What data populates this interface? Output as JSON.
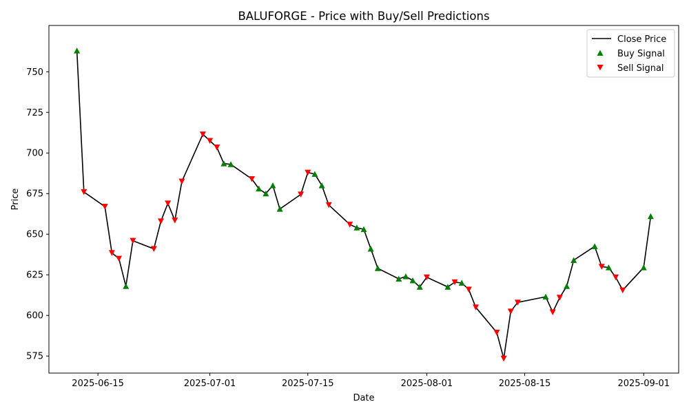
{
  "chart_data": {
    "type": "line",
    "title": "BALUFORGE - Price with Buy/Sell Predictions",
    "xlabel": "Date",
    "ylabel": "Price",
    "xlim": [
      "2025-06-08",
      "2025-09-06"
    ],
    "ylim": [
      564.5,
      778.5
    ],
    "x_ticks": [
      "2025-06-15",
      "2025-07-01",
      "2025-07-15",
      "2025-08-01",
      "2025-08-15",
      "2025-09-01"
    ],
    "y_ticks": [
      575,
      600,
      625,
      650,
      675,
      700,
      725,
      750
    ],
    "legend": {
      "placement": "top-right",
      "entries": [
        "Close Price",
        "Buy Signal",
        "Sell Signal"
      ]
    },
    "colors": {
      "line": "#000000",
      "buy": "#008000",
      "sell": "#ff0000"
    },
    "series": [
      {
        "name": "Close Price",
        "points": [
          {
            "x": "2025-06-12",
            "y": 763,
            "signal": "buy"
          },
          {
            "x": "2025-06-13",
            "y": 676,
            "signal": "sell"
          },
          {
            "x": "2025-06-16",
            "y": 667,
            "signal": "sell"
          },
          {
            "x": "2025-06-17",
            "y": 638.5,
            "signal": "sell"
          },
          {
            "x": "2025-06-18",
            "y": 635,
            "signal": "sell"
          },
          {
            "x": "2025-06-19",
            "y": 618,
            "signal": "buy"
          },
          {
            "x": "2025-06-20",
            "y": 646,
            "signal": "sell"
          },
          {
            "x": "2025-06-23",
            "y": 641,
            "signal": "sell"
          },
          {
            "x": "2025-06-24",
            "y": 658,
            "signal": "sell"
          },
          {
            "x": "2025-06-25",
            "y": 669,
            "signal": "sell"
          },
          {
            "x": "2025-06-26",
            "y": 658.5,
            "signal": "sell"
          },
          {
            "x": "2025-06-27",
            "y": 682.5,
            "signal": "sell"
          },
          {
            "x": "2025-06-30",
            "y": 711.5,
            "signal": "sell"
          },
          {
            "x": "2025-07-01",
            "y": 707.5,
            "signal": "sell"
          },
          {
            "x": "2025-07-02",
            "y": 703.5,
            "signal": "sell"
          },
          {
            "x": "2025-07-03",
            "y": 693.5,
            "signal": "buy"
          },
          {
            "x": "2025-07-04",
            "y": 693,
            "signal": "buy"
          },
          {
            "x": "2025-07-07",
            "y": 684,
            "signal": "sell"
          },
          {
            "x": "2025-07-08",
            "y": 678,
            "signal": "buy"
          },
          {
            "x": "2025-07-09",
            "y": 675,
            "signal": "buy"
          },
          {
            "x": "2025-07-10",
            "y": 680,
            "signal": "buy"
          },
          {
            "x": "2025-07-11",
            "y": 665.5,
            "signal": "buy"
          },
          {
            "x": "2025-07-14",
            "y": 674.5,
            "signal": "sell"
          },
          {
            "x": "2025-07-15",
            "y": 688,
            "signal": "sell"
          },
          {
            "x": "2025-07-16",
            "y": 687,
            "signal": "buy"
          },
          {
            "x": "2025-07-17",
            "y": 680,
            "signal": "buy"
          },
          {
            "x": "2025-07-18",
            "y": 668,
            "signal": "sell"
          },
          {
            "x": "2025-07-21",
            "y": 656,
            "signal": "sell"
          },
          {
            "x": "2025-07-22",
            "y": 654,
            "signal": "buy"
          },
          {
            "x": "2025-07-23",
            "y": 653,
            "signal": "buy"
          },
          {
            "x": "2025-07-24",
            "y": 641,
            "signal": "buy"
          },
          {
            "x": "2025-07-25",
            "y": 629,
            "signal": "buy"
          },
          {
            "x": "2025-07-28",
            "y": 622.5,
            "signal": "buy"
          },
          {
            "x": "2025-07-29",
            "y": 624,
            "signal": "buy"
          },
          {
            "x": "2025-07-30",
            "y": 621.5,
            "signal": "buy"
          },
          {
            "x": "2025-07-31",
            "y": 617.5,
            "signal": "buy"
          },
          {
            "x": "2025-08-01",
            "y": 623.5,
            "signal": "sell"
          },
          {
            "x": "2025-08-04",
            "y": 617.5,
            "signal": "buy"
          },
          {
            "x": "2025-08-05",
            "y": 620.5,
            "signal": "sell"
          },
          {
            "x": "2025-08-06",
            "y": 620,
            "signal": "buy"
          },
          {
            "x": "2025-08-07",
            "y": 616,
            "signal": "sell"
          },
          {
            "x": "2025-08-08",
            "y": 605,
            "signal": "sell"
          },
          {
            "x": "2025-08-11",
            "y": 589.5,
            "signal": "sell"
          },
          {
            "x": "2025-08-12",
            "y": 573.5,
            "signal": "sell"
          },
          {
            "x": "2025-08-13",
            "y": 602.5,
            "signal": "sell"
          },
          {
            "x": "2025-08-14",
            "y": 608,
            "signal": "sell"
          },
          {
            "x": "2025-08-18",
            "y": 611.5,
            "signal": "buy"
          },
          {
            "x": "2025-08-19",
            "y": 602,
            "signal": "sell"
          },
          {
            "x": "2025-08-20",
            "y": 611,
            "signal": "sell"
          },
          {
            "x": "2025-08-21",
            "y": 618,
            "signal": "buy"
          },
          {
            "x": "2025-08-22",
            "y": 634,
            "signal": "buy"
          },
          {
            "x": "2025-08-25",
            "y": 642.5,
            "signal": "buy"
          },
          {
            "x": "2025-08-26",
            "y": 630,
            "signal": "sell"
          },
          {
            "x": "2025-08-27",
            "y": 629.5,
            "signal": "buy"
          },
          {
            "x": "2025-08-28",
            "y": 623.5,
            "signal": "sell"
          },
          {
            "x": "2025-08-29",
            "y": 615.5,
            "signal": "sell"
          },
          {
            "x": "2025-09-01",
            "y": 629.5,
            "signal": "buy"
          },
          {
            "x": "2025-09-02",
            "y": 661,
            "signal": "buy"
          }
        ]
      }
    ]
  }
}
